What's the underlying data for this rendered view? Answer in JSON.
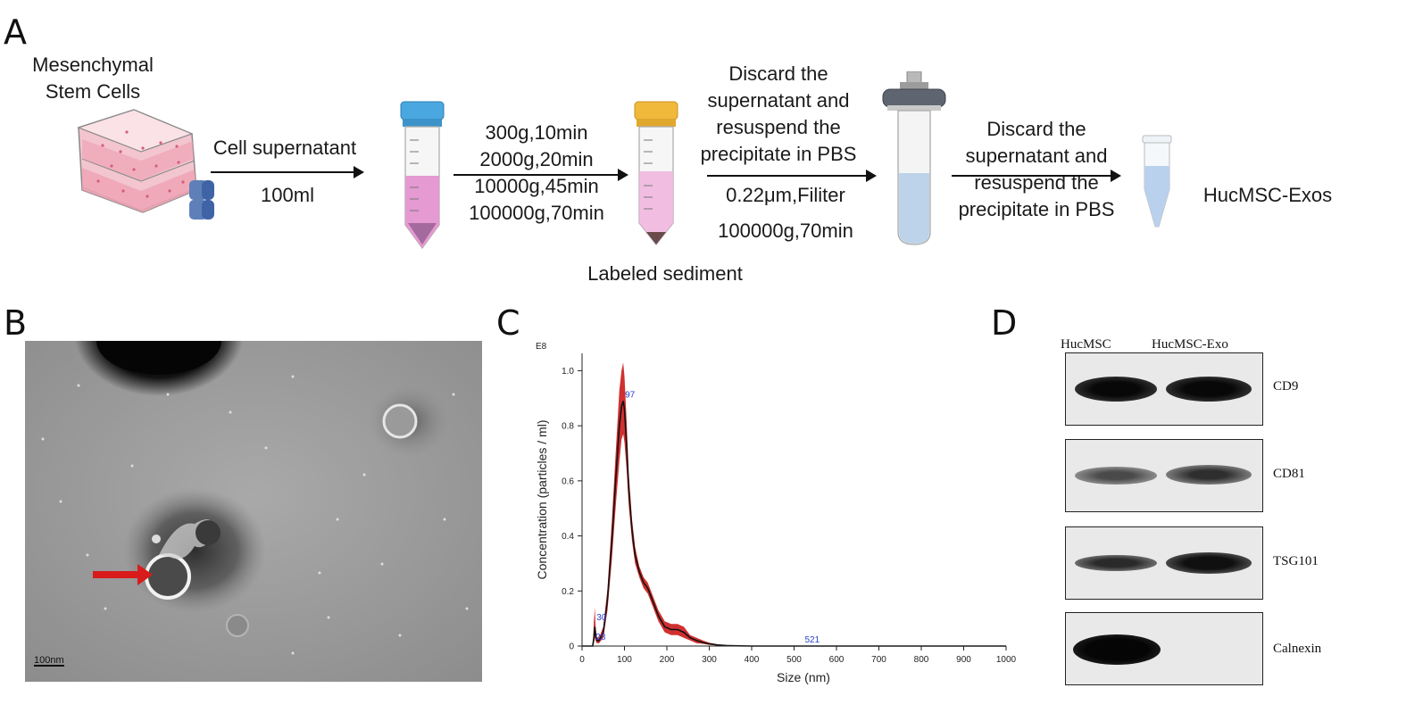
{
  "panels": {
    "a": "A",
    "b": "B",
    "c": "C",
    "d": "D"
  },
  "workflow": {
    "source_line1": "Mesenchymal",
    "source_line2": "Stem Cells",
    "step1_top": "Cell supernatant",
    "step1_bottom": "100ml",
    "step2": [
      "300g,10min",
      "2000g,20min",
      "10000g,45min",
      "100000g,70min"
    ],
    "step2_caption": "Labeled sediment",
    "step3_top": [
      "Discard the",
      "supernatant and",
      "resuspend the",
      "precipitate in PBS"
    ],
    "step3_bottom": [
      "0.22μm,Filiter",
      "100000g,70min"
    ],
    "step4": [
      "Discard the",
      "supernatant and",
      "resuspend the",
      "precipitate in PBS"
    ],
    "product": "HucMSC-Exos"
  },
  "tem": {
    "scale_bar": "100nm"
  },
  "chart_data": {
    "type": "line",
    "title": "",
    "xlabel": "Size (nm)",
    "ylabel": "Concentration (particles / ml)",
    "y_multiplier_label": "E8",
    "xlim": [
      0,
      1000
    ],
    "ylim": [
      0,
      1.05
    ],
    "x_ticks": [
      0,
      100,
      200,
      300,
      400,
      500,
      600,
      700,
      800,
      900,
      1000
    ],
    "y_ticks": [
      0,
      0.2,
      0.4,
      0.6,
      0.8,
      1.0
    ],
    "y_tick_labels": [
      "0",
      "0.2",
      "0.4",
      "0.6",
      "0.8",
      "1.0"
    ],
    "grid": false,
    "series": [
      {
        "color": "#111111",
        "x": [
          0,
          25,
          28,
          30,
          32,
          35,
          40,
          50,
          60,
          70,
          80,
          88,
          93,
          97,
          100,
          105,
          110,
          118,
          125,
          135,
          145,
          155,
          165,
          180,
          195,
          210,
          225,
          240,
          255,
          270,
          285,
          300,
          320,
          340,
          360,
          400,
          500,
          600,
          800,
          1000
        ],
        "y": [
          0,
          0,
          0.03,
          0.07,
          0.04,
          0.02,
          0.02,
          0.05,
          0.17,
          0.38,
          0.62,
          0.8,
          0.87,
          0.89,
          0.86,
          0.73,
          0.57,
          0.42,
          0.33,
          0.27,
          0.23,
          0.21,
          0.17,
          0.11,
          0.07,
          0.06,
          0.06,
          0.05,
          0.03,
          0.02,
          0.013,
          0.008,
          0.004,
          0.002,
          0.001,
          0,
          0,
          0,
          0,
          0
        ]
      }
    ],
    "error_band": {
      "color": "#cc1a1a",
      "x": [
        0,
        25,
        28,
        30,
        32,
        35,
        40,
        50,
        60,
        70,
        80,
        88,
        93,
        97,
        100,
        105,
        110,
        118,
        125,
        135,
        145,
        155,
        165,
        180,
        195,
        210,
        225,
        240,
        255,
        270,
        285,
        300,
        320,
        340,
        360,
        400,
        500,
        600,
        800,
        1000
      ],
      "upper": [
        0,
        0,
        0.09,
        0.14,
        0.07,
        0.03,
        0.03,
        0.07,
        0.21,
        0.45,
        0.72,
        0.93,
        1.0,
        1.03,
        0.98,
        0.82,
        0.63,
        0.46,
        0.36,
        0.29,
        0.25,
        0.23,
        0.19,
        0.13,
        0.09,
        0.08,
        0.08,
        0.07,
        0.04,
        0.03,
        0.02,
        0.012,
        0.006,
        0.003,
        0.001,
        0,
        0,
        0,
        0,
        0
      ],
      "lower": [
        0,
        0,
        0.01,
        0.03,
        0.02,
        0.01,
        0.01,
        0.03,
        0.13,
        0.31,
        0.52,
        0.67,
        0.75,
        0.77,
        0.74,
        0.64,
        0.51,
        0.38,
        0.3,
        0.25,
        0.21,
        0.19,
        0.15,
        0.09,
        0.05,
        0.04,
        0.04,
        0.03,
        0.02,
        0.01,
        0.008,
        0.004,
        0.002,
        0.001,
        0,
        0,
        0,
        0,
        0,
        0
      ]
    },
    "peak_labels": [
      {
        "x": 97,
        "y": 0.9,
        "label": "97"
      },
      {
        "x": 30,
        "y": 0.09,
        "label": "30"
      },
      {
        "x": 28,
        "y": 0.02,
        "label": "28"
      },
      {
        "x": 521,
        "y": 0.01,
        "label": "521"
      }
    ]
  },
  "western_blot": {
    "columns": [
      "HucMSC",
      "HucMSC-Exo"
    ],
    "rows": [
      {
        "label": "CD9",
        "levels": [
          0.95,
          1.0
        ]
      },
      {
        "label": "CD81",
        "levels": [
          0.55,
          0.7
        ]
      },
      {
        "label": "TSG101",
        "levels": [
          0.7,
          0.9
        ]
      },
      {
        "label": "Calnexin",
        "levels": [
          1.0,
          0
        ]
      }
    ]
  }
}
